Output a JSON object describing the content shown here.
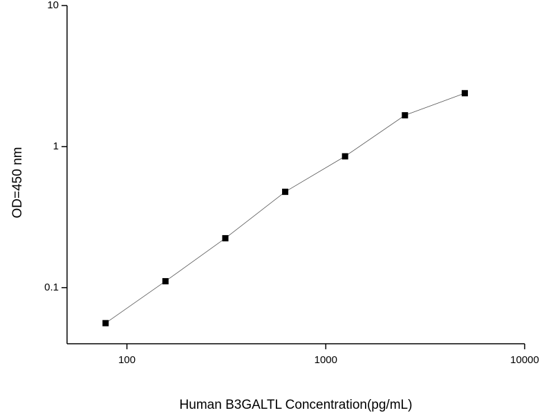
{
  "chart_data": {
    "type": "line",
    "x_label": "Human B3GALTL Concentration(pg/mL)",
    "y_label": "OD=450 nm",
    "x": [
      78.125,
      156.25,
      312.5,
      625,
      1250,
      2500,
      5000
    ],
    "series": [
      {
        "color": "#000000",
        "values": [
          0.056,
          0.111,
          0.224,
          0.478,
          0.853,
          1.667,
          2.39
        ]
      }
    ],
    "xlim": [
      50,
      10000
    ],
    "ylim": [
      0.04,
      10
    ],
    "xticks": [
      100,
      1000,
      10000
    ],
    "yticks": [
      0.1,
      1,
      10
    ],
    "xscale": "log",
    "yscale": "log"
  }
}
